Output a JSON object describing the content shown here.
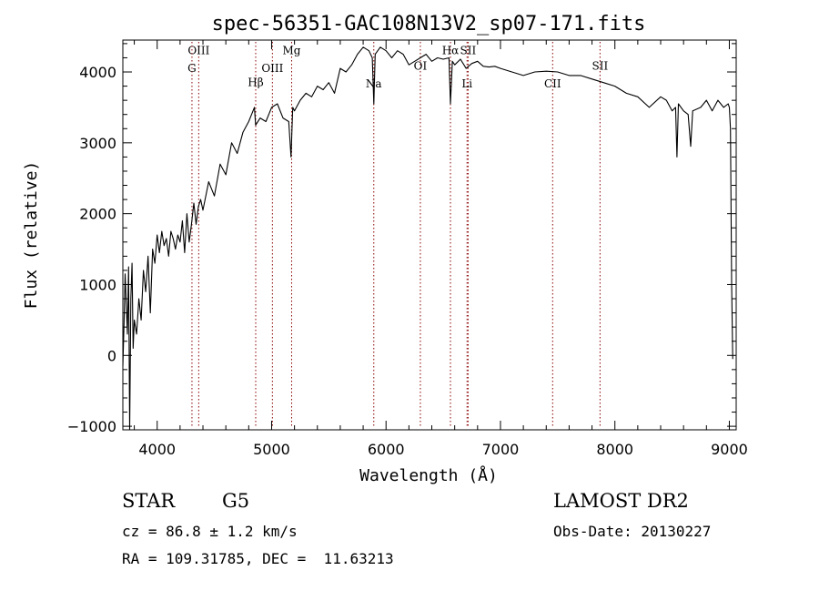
{
  "chart_data": {
    "type": "line",
    "title": "spec-56351-GAC108N13V2_sp07-171.fits",
    "xlabel": "Wavelength (Å)",
    "ylabel": "Flux (relative)",
    "xlim": [
      3700,
      9060
    ],
    "ylim": [
      -1050,
      4450
    ],
    "xticks": [
      {
        "value": 4000,
        "label": "4000"
      },
      {
        "value": 5000,
        "label": "5000"
      },
      {
        "value": 6000,
        "label": "6000"
      },
      {
        "value": 7000,
        "label": "7000"
      },
      {
        "value": 8000,
        "label": "8000"
      },
      {
        "value": 9000,
        "label": "9000"
      }
    ],
    "yticks": [
      {
        "value": -1000,
        "label": "−1000"
      },
      {
        "value": 0,
        "label": "0"
      },
      {
        "value": 1000,
        "label": "1000"
      },
      {
        "value": 2000,
        "label": "2000"
      },
      {
        "value": 3000,
        "label": "3000"
      },
      {
        "value": 4000,
        "label": "4000"
      }
    ],
    "x_minor_step": 200,
    "y_minor_step": 200,
    "grid": false,
    "line_color": "#000000",
    "marker_line_color": "#8b0000",
    "series": [
      {
        "x": [
          3700,
          3710,
          3720,
          3730,
          3740,
          3750,
          3760,
          3770,
          3780,
          3790,
          3800,
          3820,
          3840,
          3860,
          3880,
          3900,
          3920,
          3940,
          3960,
          3980,
          4000,
          4020,
          4040,
          4060,
          4080,
          4100,
          4120,
          4140,
          4160,
          4180,
          4200,
          4220,
          4240,
          4260,
          4280,
          4300,
          4320,
          4340,
          4360,
          4380,
          4400,
          4450,
          4500,
          4550,
          4600,
          4650,
          4700,
          4750,
          4800,
          4850,
          4860,
          4900,
          4950,
          5000,
          5050,
          5100,
          5150,
          5170,
          5185,
          5200,
          5250,
          5300,
          5350,
          5400,
          5450,
          5500,
          5550,
          5600,
          5650,
          5700,
          5750,
          5800,
          5850,
          5880,
          5893,
          5905,
          5950,
          6000,
          6050,
          6100,
          6150,
          6200,
          6250,
          6300,
          6350,
          6400,
          6450,
          6500,
          6550,
          6563,
          6580,
          6600,
          6650,
          6700,
          6750,
          6800,
          6850,
          6900,
          6950,
          7000,
          7100,
          7200,
          7300,
          7400,
          7500,
          7600,
          7700,
          7800,
          7900,
          8000,
          8100,
          8200,
          8300,
          8400,
          8450,
          8500,
          8530,
          8542,
          8555,
          8600,
          8640,
          8662,
          8680,
          8750,
          8800,
          8850,
          8900,
          8950,
          8990,
          9000,
          9010,
          9020,
          9030
        ],
        "y": [
          -150,
          450,
          1150,
          700,
          300,
          1250,
          -1050,
          800,
          1300,
          100,
          500,
          300,
          800,
          500,
          1200,
          900,
          1400,
          600,
          1500,
          1300,
          1700,
          1450,
          1750,
          1550,
          1650,
          1400,
          1750,
          1650,
          1500,
          1700,
          1600,
          1900,
          1450,
          2000,
          1600,
          1850,
          2150,
          1850,
          2100,
          2200,
          2050,
          2450,
          2250,
          2700,
          2550,
          3000,
          2850,
          3150,
          3300,
          3500,
          3250,
          3350,
          3300,
          3500,
          3550,
          3350,
          3300,
          2800,
          3500,
          3450,
          3600,
          3700,
          3650,
          3800,
          3750,
          3850,
          3700,
          4050,
          4000,
          4100,
          4250,
          4350,
          4300,
          4200,
          3550,
          4250,
          4350,
          4300,
          4200,
          4300,
          4250,
          4100,
          4150,
          4200,
          4250,
          4150,
          4200,
          4180,
          4200,
          3550,
          4150,
          4100,
          4180,
          4050,
          4120,
          4150,
          4080,
          4070,
          4080,
          4050,
          4000,
          3950,
          4000,
          4010,
          4000,
          3950,
          3950,
          3900,
          3850,
          3800,
          3700,
          3650,
          3500,
          3650,
          3600,
          3450,
          3500,
          2800,
          3550,
          3450,
          3400,
          2950,
          3450,
          3500,
          3600,
          3450,
          3600,
          3500,
          3550,
          3500,
          3200,
          1000,
          -50
        ]
      }
    ],
    "line_markers": [
      {
        "name": "OIII",
        "x": 4363,
        "label_y": 4250,
        "label_x_offset": 0
      },
      {
        "name": "G",
        "x": 4304,
        "label_y": 4000,
        "label_x_offset": 0
      },
      {
        "name": "Hβ",
        "x": 4861,
        "label_y": 3800,
        "label_x_offset": 0
      },
      {
        "name": "OIII",
        "x": 5007,
        "label_y": 4000,
        "label_x_offset": 0
      },
      {
        "name": "Mg",
        "x": 5175,
        "label_y": 4250,
        "label_x_offset": 0
      },
      {
        "name": "Na",
        "x": 5893,
        "label_y": 3780,
        "label_x_offset": 0
      },
      {
        "name": "OI",
        "x": 6300,
        "label_y": 4030,
        "label_x_offset": 0
      },
      {
        "name": "Hα",
        "x": 6563,
        "label_y": 4250,
        "label_x_offset": 0
      },
      {
        "name": "SII",
        "x": 6717,
        "label_y": 4250,
        "label_x_offset": 0
      },
      {
        "name": "Li",
        "x": 6708,
        "label_y": 3780,
        "label_x_offset": 0
      },
      {
        "name": "CII",
        "x": 7456,
        "label_y": 3780,
        "label_x_offset": 0
      },
      {
        "name": "SII",
        "x": 7870,
        "label_y": 4030,
        "label_x_offset": 0
      }
    ]
  },
  "info": {
    "class_label": "STAR",
    "subclass_label": "G5",
    "survey_label": "LAMOST DR2",
    "redshift_text": "cz = 86.8 ± 1.2 km/s",
    "obs_date_text": "Obs-Date: 20130227",
    "coords_text": "RA = 109.31785, DEC =  11.63213"
  }
}
